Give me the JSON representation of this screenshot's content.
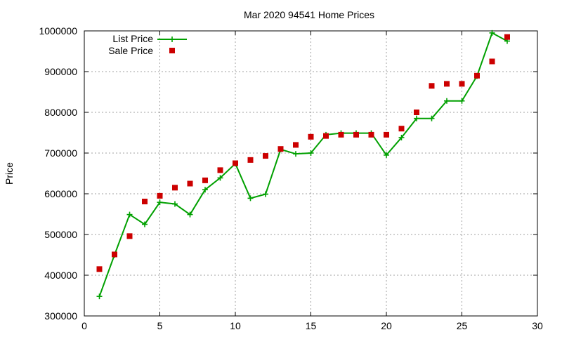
{
  "chart_data": {
    "type": "line",
    "title": "Mar 2020 94541 Home Prices",
    "xlabel": "",
    "ylabel": "Price",
    "xlim": [
      0,
      30
    ],
    "ylim": [
      300000,
      1000000
    ],
    "xticks": [
      0,
      5,
      10,
      15,
      20,
      25,
      30
    ],
    "yticks": [
      300000,
      400000,
      500000,
      600000,
      700000,
      800000,
      900000,
      1000000
    ],
    "grid": true,
    "legend_position": "top-left",
    "series": [
      {
        "name": "List Price",
        "style": "line-plus",
        "color": "#00a000",
        "x": [
          1,
          2,
          3,
          4,
          5,
          6,
          7,
          8,
          9,
          10,
          11,
          12,
          13,
          14,
          15,
          16,
          17,
          18,
          19,
          20,
          21,
          22,
          23,
          24,
          25,
          26,
          27,
          28
        ],
        "y": [
          348000,
          450000,
          549000,
          525000,
          579000,
          575000,
          549000,
          610000,
          639000,
          674000,
          589000,
          599000,
          709000,
          698000,
          700000,
          745000,
          749000,
          749000,
          749000,
          695000,
          738000,
          785000,
          785000,
          828000,
          828000,
          889000,
          995000,
          975000
        ]
      },
      {
        "name": "Sale Price",
        "style": "square",
        "color": "#cc0000",
        "x": [
          1,
          2,
          3,
          4,
          5,
          6,
          7,
          8,
          9,
          10,
          11,
          12,
          13,
          14,
          15,
          16,
          17,
          18,
          19,
          20,
          21,
          22,
          23,
          24,
          25,
          26,
          27,
          28
        ],
        "y": [
          415000,
          451000,
          496000,
          581000,
          595000,
          615000,
          625000,
          633000,
          658000,
          675000,
          683000,
          693000,
          710000,
          720000,
          740000,
          742000,
          745000,
          745000,
          745000,
          745000,
          760000,
          800000,
          865000,
          870000,
          870000,
          890000,
          925000,
          985000
        ]
      }
    ]
  }
}
